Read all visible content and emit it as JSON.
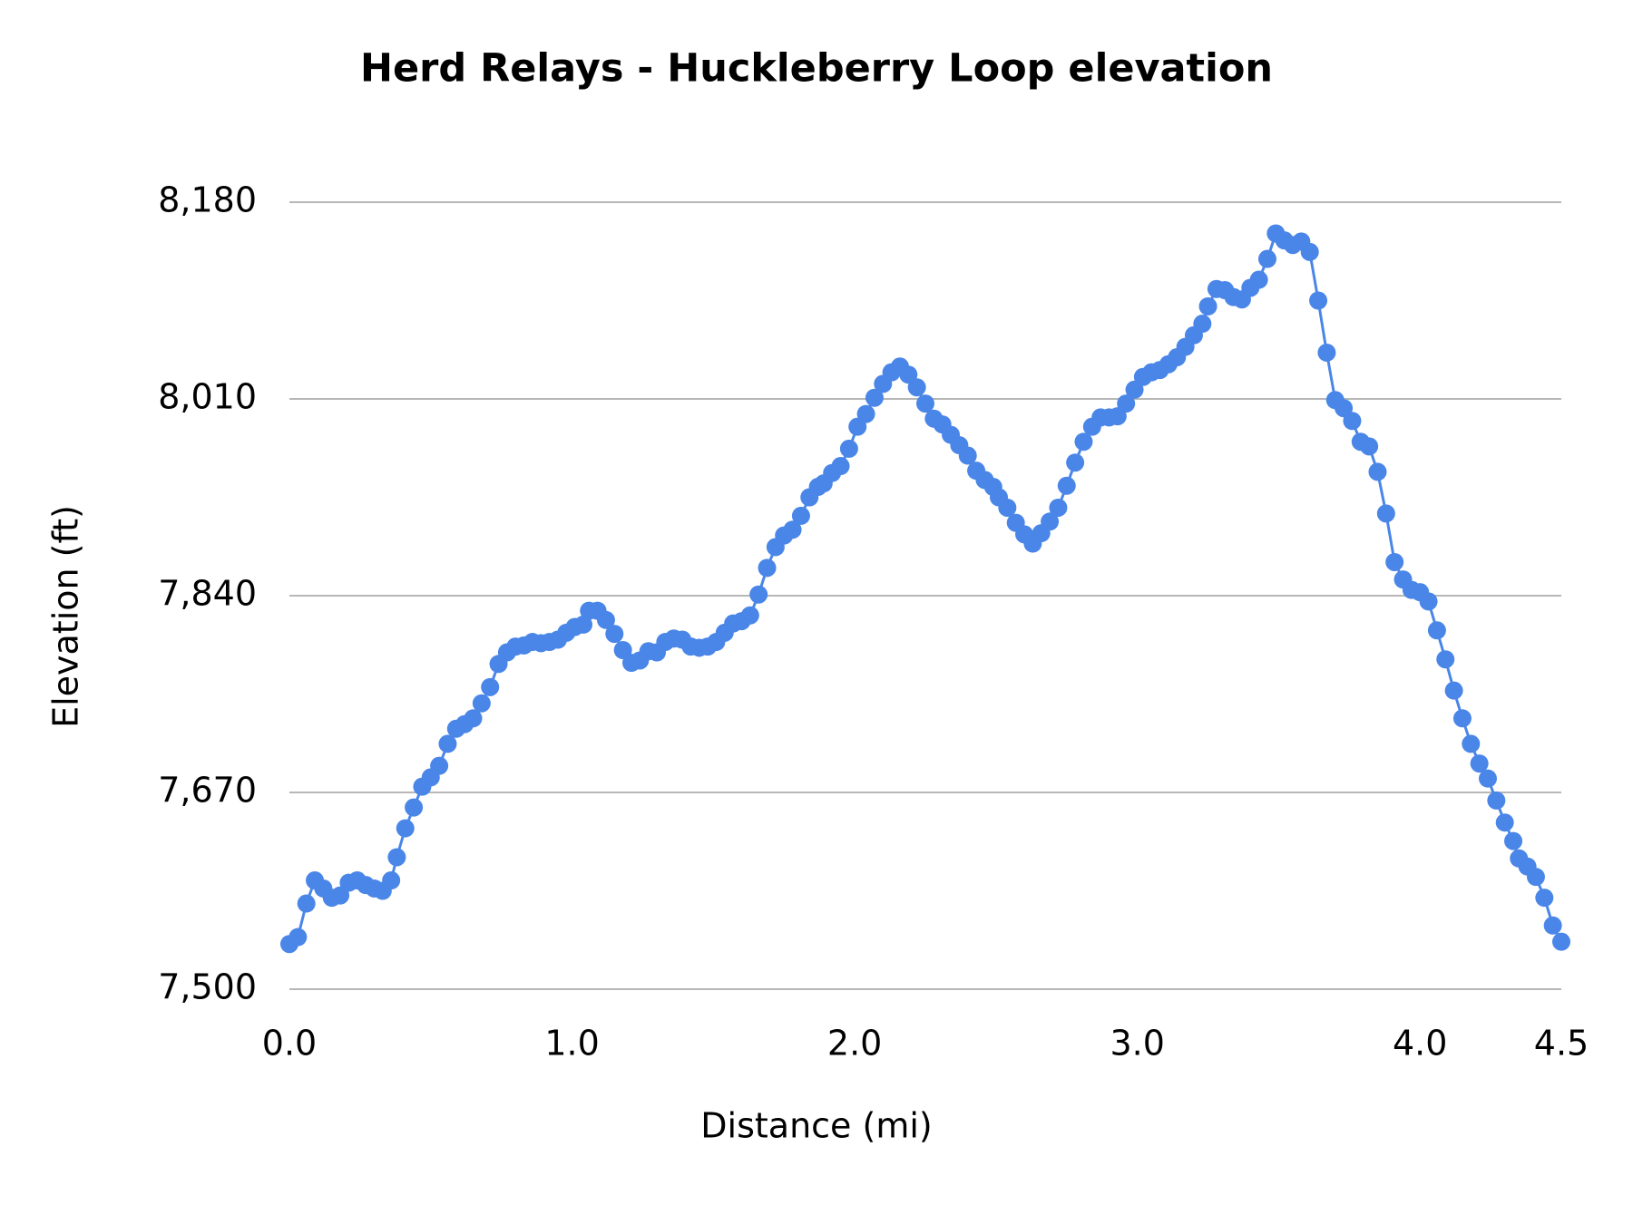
{
  "chart_data": {
    "type": "line",
    "title": "Herd Relays - Huckleberry Loop elevation",
    "x_label": "Distance (mi)",
    "y_label": "Elevation (ft)",
    "xlim": [
      0,
      4.5
    ],
    "ylim": [
      7500,
      8180
    ],
    "xticks": [
      {
        "value": 0,
        "label": "0.0"
      },
      {
        "value": 1,
        "label": "1.0"
      },
      {
        "value": 2,
        "label": "2.0"
      },
      {
        "value": 3,
        "label": "3.0"
      },
      {
        "value": 4,
        "label": "4.0"
      },
      4.5
    ],
    "yticks": [
      {
        "value": 7500,
        "label": "7,500"
      },
      {
        "value": 7670,
        "label": "7,670"
      },
      {
        "value": 7840,
        "label": "7,840"
      },
      {
        "value": 8010,
        "label": "8,010"
      },
      {
        "value": 8180,
        "label": "8,180"
      }
    ],
    "grid": true,
    "x": [
      0,
      0.03,
      0.06,
      0.09,
      0.12,
      0.15,
      0.18,
      0.21,
      0.24,
      0.27,
      0.3,
      0.33,
      0.36,
      0.38,
      0.41,
      0.44,
      0.47,
      0.5,
      0.53,
      0.56,
      0.59,
      0.62,
      0.65,
      0.68,
      0.71,
      0.74,
      0.77,
      0.8,
      0.83,
      0.86,
      0.89,
      0.92,
      0.95,
      0.98,
      1.01,
      1.04,
      1.06,
      1.09,
      1.12,
      1.15,
      1.18,
      1.21,
      1.24,
      1.27,
      1.3,
      1.33,
      1.36,
      1.39,
      1.42,
      1.45,
      1.48,
      1.51,
      1.54,
      1.57,
      1.6,
      1.63,
      1.66,
      1.69,
      1.72,
      1.75,
      1.78,
      1.81,
      1.84,
      1.87,
      1.89,
      1.92,
      1.95,
      1.98,
      2.01,
      2.04,
      2.07,
      2.1,
      2.13,
      2.16,
      2.19,
      2.22,
      2.25,
      2.28,
      2.31,
      2.34,
      2.37,
      2.4,
      2.43,
      2.46,
      2.49,
      2.51,
      2.54,
      2.57,
      2.6,
      2.63,
      2.66,
      2.69,
      2.72,
      2.75,
      2.78,
      2.81,
      2.84,
      2.87,
      2.9,
      2.93,
      2.96,
      2.99,
      3.02,
      3.05,
      3.08,
      3.11,
      3.14,
      3.17,
      3.2,
      3.23,
      3.25,
      3.28,
      3.31,
      3.34,
      3.37,
      3.4,
      3.43,
      3.46,
      3.49,
      3.52,
      3.55,
      3.58,
      3.61,
      3.64,
      3.67,
      3.7,
      3.73,
      3.76,
      3.79,
      3.82,
      3.85,
      3.88,
      3.91,
      3.94,
      3.97,
      4.0,
      4.03,
      4.06,
      4.09,
      4.12,
      4.15,
      4.18,
      4.21,
      4.24,
      4.27,
      4.3,
      4.33,
      4.35,
      4.38,
      4.41,
      4.44,
      4.47,
      4.5
    ],
    "series": [
      {
        "color": "#4a86e8",
        "values": [
          7539,
          7545,
          7574,
          7594,
          7587,
          7579,
          7581,
          7592,
          7594,
          7590,
          7587,
          7585,
          7594,
          7614,
          7639,
          7657,
          7675,
          7683,
          7693,
          7712,
          7725,
          7729,
          7734,
          7747,
          7761,
          7781,
          7791,
          7796,
          7797,
          7800,
          7799,
          7800,
          7802,
          7808,
          7813,
          7815,
          7827,
          7827,
          7819,
          7807,
          7793,
          7782,
          7784,
          7792,
          7791,
          7800,
          7803,
          7802,
          7796,
          7795,
          7796,
          7800,
          7808,
          7816,
          7818,
          7823,
          7841,
          7864,
          7882,
          7892,
          7897,
          7909,
          7925,
          7934,
          7937,
          7946,
          7952,
          7967,
          7986,
          7997,
          8011,
          8023,
          8033,
          8038,
          8031,
          8020,
          8006,
          7993,
          7988,
          7979,
          7970,
          7961,
          7948,
          7940,
          7934,
          7925,
          7916,
          7903,
          7893,
          7885,
          7894,
          7904,
          7916,
          7935,
          7955,
          7973,
          7986,
          7994,
          7994,
          7995,
          8006,
          8018,
          8029,
          8033,
          8035,
          8040,
          8046,
          8055,
          8065,
          8075,
          8090,
          8105,
          8104,
          8098,
          8096,
          8106,
          8113,
          8131,
          8153,
          8147,
          8143,
          8146,
          8137,
          8095,
          8050,
          8009,
          8002,
          7991,
          7973,
          7969,
          7947,
          7911,
          7869,
          7854,
          7845,
          7843,
          7835,
          7810,
          7785,
          7758,
          7734,
          7712,
          7695,
          7682,
          7663,
          7644,
          7628,
          7613,
          7606,
          7597,
          7579,
          7555,
          7541
        ]
      }
    ]
  }
}
